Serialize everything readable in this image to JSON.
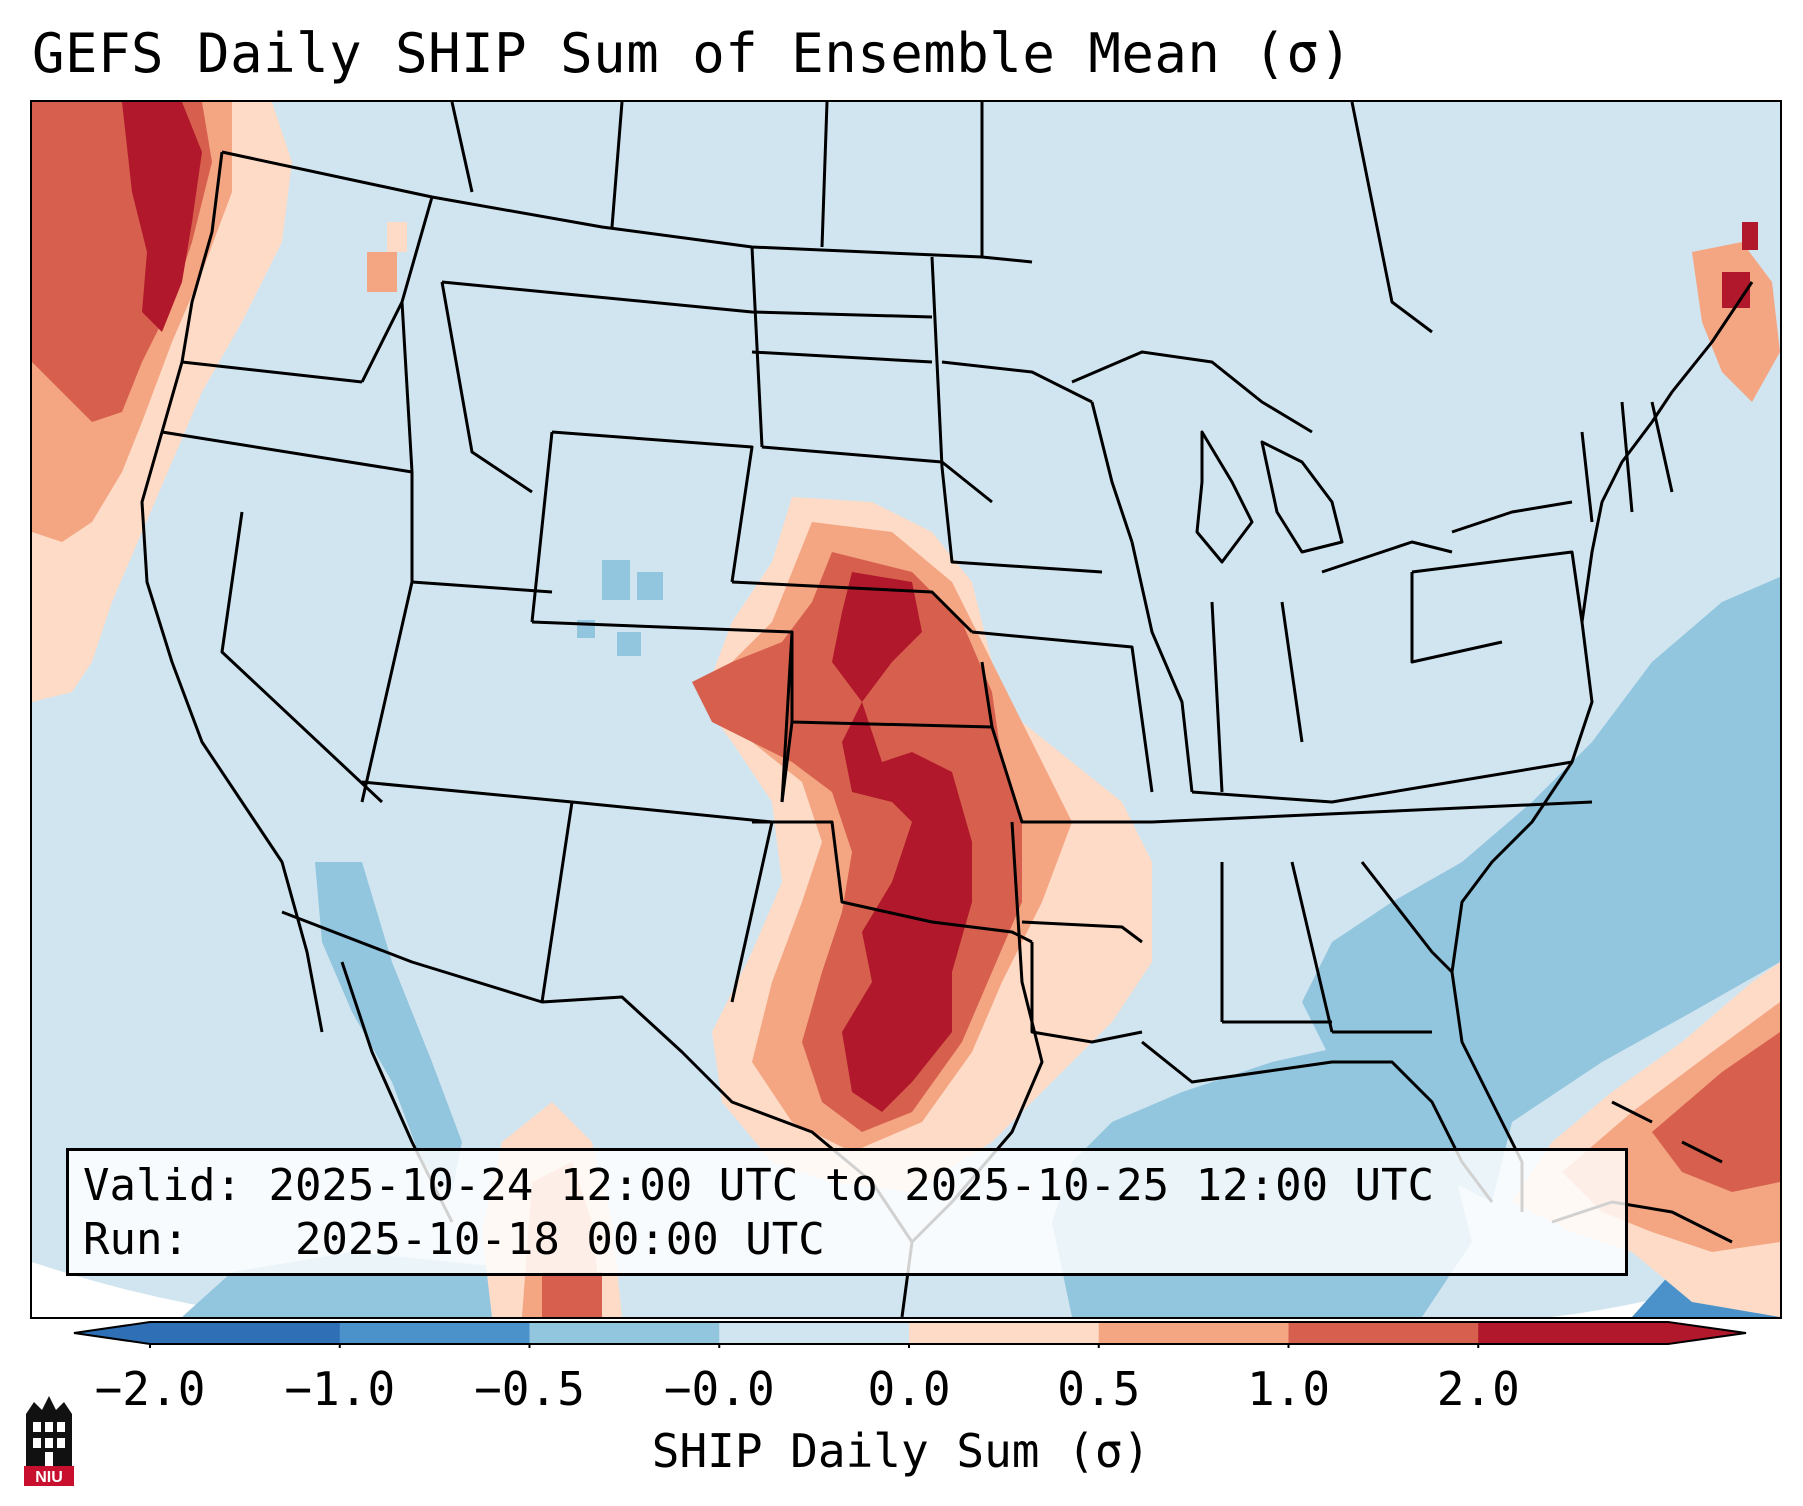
{
  "title": "GEFS Daily SHIP Sum of Ensemble Mean (σ)",
  "info": {
    "valid_label": "Valid:",
    "valid_value": "2025-10-24 12:00 UTC to 2025-10-25 12:00 UTC",
    "run_label": "Run:",
    "run_value": "2025-10-18 00:00 UTC"
  },
  "colorbar": {
    "label": "SHIP Daily Sum (σ)",
    "ticks": [
      "−2.0",
      "−1.0",
      "−0.5",
      "−0.0",
      "0.0",
      "0.5",
      "1.0",
      "2.0"
    ],
    "colors": [
      "#2f6fb6",
      "#4a92c9",
      "#92c5de",
      "#d1e5f0",
      "#fddbc7",
      "#f4a582",
      "#d6604d",
      "#b2182b"
    ],
    "extend": "both"
  },
  "map": {
    "region": "Continental United States",
    "colors": {
      "background": "#d1e5f0",
      "ocean_neg": "#92c5de",
      "strong_neg": "#4a92c9",
      "light_pos": "#fddbc7",
      "med_pos": "#f4a582",
      "high_pos": "#d6604d",
      "max_pos": "#b2182b",
      "borders": "#000000"
    }
  },
  "logo": {
    "text": "NIU",
    "color": "#c8102e"
  }
}
